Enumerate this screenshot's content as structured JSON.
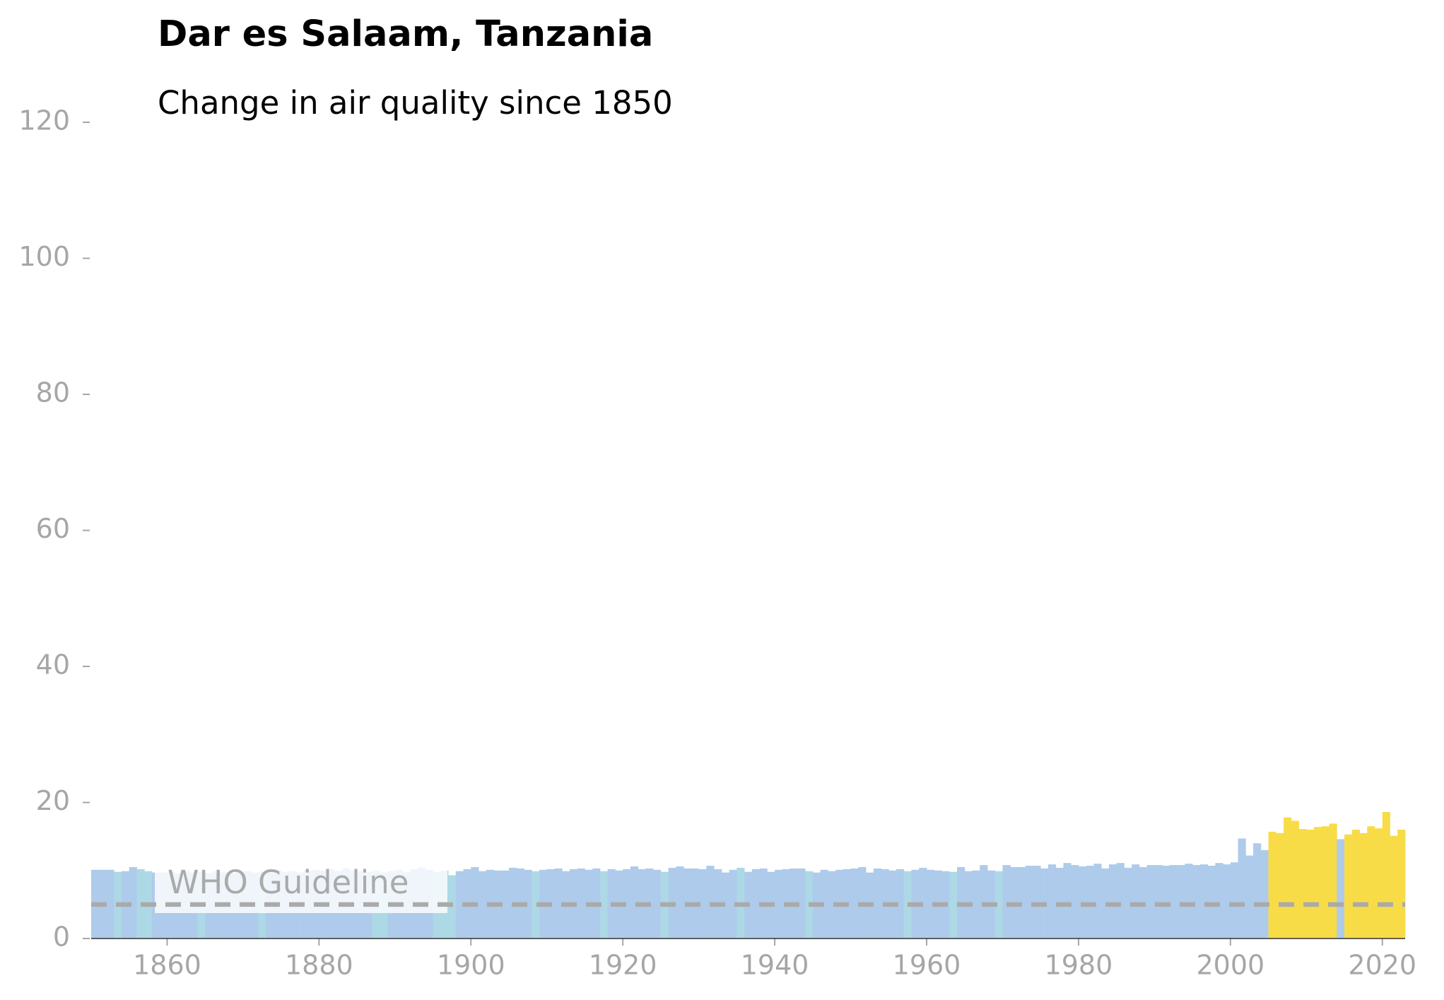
{
  "chart_data": {
    "type": "bar",
    "title": "Dar es Salaam, Tanzania",
    "subtitle": "Change in air quality since 1850",
    "x": [
      1850,
      1851,
      1852,
      1853,
      1854,
      1855,
      1856,
      1857,
      1858,
      1859,
      1860,
      1861,
      1862,
      1863,
      1864,
      1865,
      1866,
      1867,
      1868,
      1869,
      1870,
      1871,
      1872,
      1873,
      1874,
      1875,
      1876,
      1877,
      1878,
      1879,
      1880,
      1881,
      1882,
      1883,
      1884,
      1885,
      1886,
      1887,
      1888,
      1889,
      1890,
      1891,
      1892,
      1893,
      1894,
      1895,
      1896,
      1897,
      1898,
      1899,
      1900,
      1901,
      1902,
      1903,
      1904,
      1905,
      1906,
      1907,
      1908,
      1909,
      1910,
      1911,
      1912,
      1913,
      1914,
      1915,
      1916,
      1917,
      1918,
      1919,
      1920,
      1921,
      1922,
      1923,
      1924,
      1925,
      1926,
      1927,
      1928,
      1929,
      1930,
      1931,
      1932,
      1933,
      1934,
      1935,
      1936,
      1937,
      1938,
      1939,
      1940,
      1941,
      1942,
      1943,
      1944,
      1945,
      1946,
      1947,
      1948,
      1949,
      1950,
      1951,
      1952,
      1953,
      1954,
      1955,
      1956,
      1957,
      1958,
      1959,
      1960,
      1961,
      1962,
      1963,
      1964,
      1965,
      1966,
      1967,
      1968,
      1969,
      1970,
      1971,
      1972,
      1973,
      1974,
      1975,
      1976,
      1977,
      1978,
      1979,
      1980,
      1981,
      1982,
      1983,
      1984,
      1985,
      1986,
      1987,
      1988,
      1989,
      1990,
      1991,
      1992,
      1993,
      1994,
      1995,
      1996,
      1997,
      1998,
      1999,
      2000,
      2001,
      2002,
      2003,
      2004,
      2005,
      2006,
      2007,
      2008,
      2009,
      2010,
      2011,
      2012,
      2013,
      2014,
      2015,
      2016,
      2017,
      2018,
      2019,
      2020,
      2021,
      2022
    ],
    "values": [
      10.1,
      10.1,
      10.1,
      9.8,
      9.9,
      10.5,
      10.2,
      9.9,
      9.7,
      9.7,
      9.8,
      9.6,
      9.9,
      9.7,
      9.8,
      9.6,
      9.9,
      9.8,
      9.6,
      9.8,
      9.9,
      9.7,
      9.8,
      9.7,
      10.0,
      9.8,
      9.9,
      9.7,
      10.0,
      10.1,
      10.0,
      10.2,
      9.9,
      10.3,
      10.0,
      9.9,
      9.8,
      10.0,
      9.7,
      9.9,
      10.1,
      9.8,
      10.2,
      10.4,
      10.1,
      9.8,
      10.0,
      9.3,
      9.9,
      10.2,
      10.5,
      9.9,
      10.1,
      10.0,
      10.0,
      10.4,
      10.3,
      10.1,
      9.9,
      10.1,
      10.2,
      10.3,
      9.9,
      10.2,
      10.3,
      10.1,
      10.3,
      9.9,
      10.2,
      10.0,
      10.2,
      10.6,
      10.2,
      10.3,
      10.1,
      9.8,
      10.4,
      10.6,
      10.3,
      10.3,
      10.2,
      10.7,
      10.2,
      9.7,
      10.1,
      10.4,
      9.8,
      10.2,
      10.3,
      9.8,
      10.1,
      10.2,
      10.3,
      10.3,
      9.9,
      9.7,
      10.1,
      9.9,
      10.1,
      10.2,
      10.3,
      10.5,
      9.7,
      10.3,
      10.2,
      10.0,
      10.2,
      9.9,
      10.1,
      10.4,
      10.1,
      10.0,
      9.9,
      9.8,
      10.5,
      9.9,
      10.0,
      10.8,
      10.0,
      9.9,
      10.8,
      10.5,
      10.5,
      10.7,
      10.7,
      10.3,
      10.9,
      10.4,
      11.1,
      10.8,
      10.6,
      10.7,
      11.0,
      10.3,
      10.9,
      11.1,
      10.4,
      10.9,
      10.5,
      10.8,
      10.8,
      10.7,
      10.8,
      10.8,
      11.0,
      10.8,
      10.9,
      10.7,
      11.1,
      10.9,
      11.2,
      14.7,
      12.2,
      14.0,
      13.0,
      15.7,
      15.5,
      17.8,
      17.3,
      16.1,
      16.0,
      16.4,
      16.5,
      16.9,
      14.6,
      15.3,
      16.0,
      15.5,
      16.5,
      16.2,
      18.6,
      15.1,
      16.0
    ],
    "colors": [
      "#aecbeb",
      "#aecbeb",
      "#aecbeb",
      "#add8e6",
      "#aecbeb",
      "#aecbeb",
      "#add8e6",
      "#add8e6",
      "#aecbeb",
      "#aecbeb",
      "#aecbeb",
      "#aecbeb",
      "#aecbeb",
      "#aecbeb",
      "#add8e6",
      "#aecbeb",
      "#aecbeb",
      "#aecbeb",
      "#aecbeb",
      "#aecbeb",
      "#aecbeb",
      "#aecbeb",
      "#add8e6",
      "#aecbeb",
      "#aecbeb",
      "#aecbeb",
      "#aecbeb",
      "#aecbeb",
      "#aecbeb",
      "#aecbeb",
      "#aecbeb",
      "#aecbeb",
      "#aecbeb",
      "#aecbeb",
      "#aecbeb",
      "#aecbeb",
      "#aecbeb",
      "#add8e6",
      "#add8e6",
      "#aecbeb",
      "#aecbeb",
      "#aecbeb",
      "#aecbeb",
      "#aecbeb",
      "#aecbeb",
      "#add8e6",
      "#add8e6",
      "#add8e6",
      "#aecbeb",
      "#aecbeb",
      "#aecbeb",
      "#aecbeb",
      "#aecbeb",
      "#aecbeb",
      "#aecbeb",
      "#aecbeb",
      "#aecbeb",
      "#aecbeb",
      "#add8e6",
      "#aecbeb",
      "#aecbeb",
      "#aecbeb",
      "#aecbeb",
      "#aecbeb",
      "#aecbeb",
      "#aecbeb",
      "#aecbeb",
      "#add8e6",
      "#aecbeb",
      "#aecbeb",
      "#aecbeb",
      "#aecbeb",
      "#aecbeb",
      "#aecbeb",
      "#aecbeb",
      "#add8e6",
      "#aecbeb",
      "#aecbeb",
      "#aecbeb",
      "#aecbeb",
      "#aecbeb",
      "#aecbeb",
      "#aecbeb",
      "#aecbeb",
      "#aecbeb",
      "#add8e6",
      "#aecbeb",
      "#aecbeb",
      "#aecbeb",
      "#aecbeb",
      "#aecbeb",
      "#aecbeb",
      "#aecbeb",
      "#aecbeb",
      "#add8e6",
      "#aecbeb",
      "#aecbeb",
      "#aecbeb",
      "#aecbeb",
      "#aecbeb",
      "#aecbeb",
      "#aecbeb",
      "#aecbeb",
      "#aecbeb",
      "#aecbeb",
      "#aecbeb",
      "#aecbeb",
      "#add8e6",
      "#aecbeb",
      "#aecbeb",
      "#aecbeb",
      "#aecbeb",
      "#aecbeb",
      "#add8e6",
      "#aecbeb",
      "#aecbeb",
      "#aecbeb",
      "#aecbeb",
      "#aecbeb",
      "#add8e6",
      "#aecbeb",
      "#aecbeb",
      "#aecbeb",
      "#aecbeb",
      "#aecbeb",
      "#aecbeb",
      "#aecbeb",
      "#aecbeb",
      "#aecbeb",
      "#aecbeb",
      "#aecbeb",
      "#aecbeb",
      "#aecbeb",
      "#aecbeb",
      "#aecbeb",
      "#aecbeb",
      "#aecbeb",
      "#aecbeb",
      "#aecbeb",
      "#aecbeb",
      "#aecbeb",
      "#aecbeb",
      "#aecbeb",
      "#aecbeb",
      "#aecbeb",
      "#aecbeb",
      "#aecbeb",
      "#aecbeb",
      "#aecbeb",
      "#aecbeb",
      "#aecbeb",
      "#aecbeb",
      "#aecbeb",
      "#aecbeb",
      "#aecbeb",
      "#f7dc47",
      "#f7dc47",
      "#f7dc47",
      "#f7dc47",
      "#f7dc47",
      "#f7dc47",
      "#f7dc47",
      "#f7dc47",
      "#f7dc47",
      "#aecbeb",
      "#f7dc47",
      "#f7dc47",
      "#f7dc47",
      "#f7dc47",
      "#f7dc47",
      "#f7dc47",
      "#f7dc47",
      "#f7dc47"
    ],
    "xlim": [
      1850,
      2023
    ],
    "xticks": [
      1860,
      1880,
      1900,
      1920,
      1940,
      1960,
      1980,
      2000,
      2020
    ],
    "ylim": [
      0,
      120
    ],
    "yticks": [
      0,
      20,
      40,
      60,
      80,
      100,
      120
    ],
    "guideline": {
      "value": 5,
      "label": "WHO Guideline",
      "color": "#aaaaaa"
    }
  }
}
